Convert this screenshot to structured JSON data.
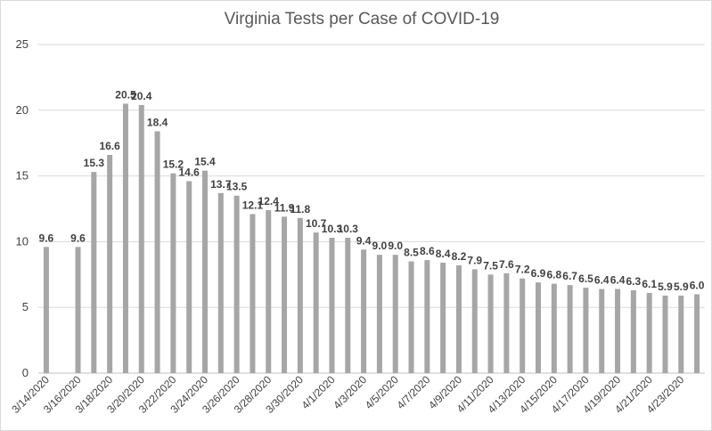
{
  "chart_data": {
    "type": "bar",
    "title": "Virginia Tests per Case of COVID-19",
    "xlabel": "",
    "ylabel": "",
    "ylim": [
      0,
      25
    ],
    "yticks": [
      "0",
      "5",
      "10",
      "15",
      "20",
      "25"
    ],
    "grid": true,
    "legend": "none",
    "bar_color": "#a6a6a6",
    "categories": [
      "3/14/2020",
      "3/15/2020",
      "3/16/2020",
      "3/17/2020",
      "3/18/2020",
      "3/19/2020",
      "3/20/2020",
      "3/21/2020",
      "3/22/2020",
      "3/23/2020",
      "3/24/2020",
      "3/25/2020",
      "3/26/2020",
      "3/27/2020",
      "3/28/2020",
      "3/29/2020",
      "3/30/2020",
      "3/31/2020",
      "4/1/2020",
      "4/2/2020",
      "4/3/2020",
      "4/4/2020",
      "4/5/2020",
      "4/6/2020",
      "4/7/2020",
      "4/8/2020",
      "4/9/2020",
      "4/10/2020",
      "4/11/2020",
      "4/12/2020",
      "4/13/2020",
      "4/14/2020",
      "4/15/2020",
      "4/16/2020",
      "4/17/2020",
      "4/18/2020",
      "4/19/2020",
      "4/20/2020",
      "4/21/2020",
      "4/22/2020",
      "4/23/2020",
      "4/24/2020"
    ],
    "values": [
      9.6,
      null,
      9.6,
      15.3,
      16.6,
      20.5,
      20.4,
      18.4,
      15.2,
      14.6,
      15.4,
      13.7,
      13.5,
      12.1,
      12.4,
      11.9,
      11.8,
      10.7,
      10.3,
      10.3,
      9.4,
      9.0,
      9.0,
      8.5,
      8.6,
      8.4,
      8.2,
      7.9,
      7.5,
      7.6,
      7.2,
      6.9,
      6.8,
      6.7,
      6.5,
      6.4,
      6.4,
      6.3,
      6.1,
      5.9,
      5.9,
      6.0
    ],
    "data_labels": [
      "9.6",
      "",
      "9.6",
      "15.3",
      "16.6",
      "20.5",
      "20.4",
      "18.4",
      "15.2",
      "14.6",
      "15.4",
      "13.7",
      "13.5",
      "12.1",
      "12.4",
      "11.9",
      "11.8",
      "10.7",
      "10.3",
      "10.3",
      "9.4",
      "9.0",
      "9.0",
      "8.5",
      "8.6",
      "8.4",
      "8.2",
      "7.9",
      "7.5",
      "7.6",
      "7.2",
      "6.9",
      "6.8",
      "6.7",
      "6.5",
      "6.4",
      "6.4",
      "6.3",
      "6.1",
      "5.9",
      "5.9",
      "6.0"
    ],
    "xtick_labels": [
      "3/14/2020",
      "3/16/2020",
      "3/18/2020",
      "3/20/2020",
      "3/22/2020",
      "3/24/2020",
      "3/26/2020",
      "3/28/2020",
      "3/30/2020",
      "4/1/2020",
      "4/3/2020",
      "4/5/2020",
      "4/7/2020",
      "4/9/2020",
      "4/11/2020",
      "4/13/2020",
      "4/15/2020",
      "4/17/2020",
      "4/19/2020",
      "4/21/2020",
      "4/23/2020"
    ]
  }
}
